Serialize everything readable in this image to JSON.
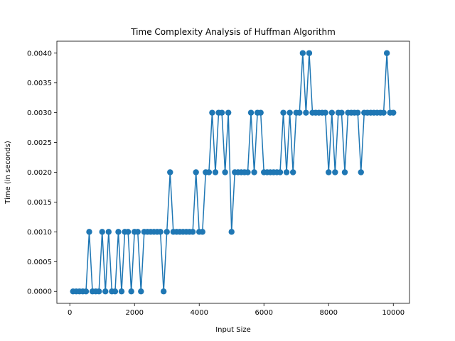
{
  "chart_data": {
    "type": "line",
    "title": "Time Complexity Analysis of Huffman Algorithm",
    "xlabel": "Input Size",
    "ylabel": "Time (in seconds)",
    "xlim": [
      -400,
      10500
    ],
    "ylim": [
      -0.0002,
      0.0042
    ],
    "xticks": [
      0,
      2000,
      4000,
      6000,
      8000,
      10000
    ],
    "xtick_labels": [
      "0",
      "2000",
      "4000",
      "6000",
      "8000",
      "10000"
    ],
    "yticks": [
      0,
      0.0005,
      0.001,
      0.0015,
      0.002,
      0.0025,
      0.003,
      0.0035,
      0.004
    ],
    "ytick_labels": [
      "0.0000",
      "0.0005",
      "0.0010",
      "0.0015",
      "0.0020",
      "0.0025",
      "0.0030",
      "0.0035",
      "0.0040"
    ],
    "grid": false,
    "marker": "circle",
    "color": "#1f77b4",
    "x": [
      100,
      200,
      300,
      400,
      500,
      600,
      700,
      800,
      900,
      1000,
      1100,
      1200,
      1300,
      1400,
      1500,
      1600,
      1700,
      1800,
      1900,
      2000,
      2100,
      2200,
      2300,
      2400,
      2500,
      2600,
      2700,
      2800,
      2900,
      3000,
      3100,
      3200,
      3300,
      3400,
      3500,
      3600,
      3700,
      3800,
      3900,
      4000,
      4100,
      4200,
      4300,
      4400,
      4500,
      4600,
      4700,
      4800,
      4900,
      5000,
      5100,
      5200,
      5300,
      5400,
      5500,
      5600,
      5700,
      5800,
      5900,
      6000,
      6100,
      6200,
      6300,
      6400,
      6500,
      6600,
      6700,
      6800,
      6900,
      7000,
      7100,
      7200,
      7300,
      7400,
      7500,
      7600,
      7700,
      7800,
      7900,
      8000,
      8100,
      8200,
      8300,
      8400,
      8500,
      8600,
      8700,
      8800,
      8900,
      9000,
      9100,
      9200,
      9300,
      9400,
      9500,
      9600,
      9700,
      9800,
      9900,
      10000
    ],
    "y": [
      0,
      0,
      0,
      0,
      0,
      0.001,
      0,
      0,
      0,
      0.001,
      0,
      0.001,
      0,
      0,
      0.001,
      0,
      0.001,
      0.001,
      0,
      0.001,
      0.001,
      0,
      0.001,
      0.001,
      0.001,
      0.001,
      0.001,
      0.001,
      0,
      0.001,
      0.002,
      0.001,
      0.001,
      0.001,
      0.001,
      0.001,
      0.001,
      0.001,
      0.002,
      0.001,
      0.001,
      0.002,
      0.002,
      0.003,
      0.002,
      0.003,
      0.003,
      0.002,
      0.003,
      0.001,
      0.002,
      0.002,
      0.002,
      0.002,
      0.002,
      0.003,
      0.002,
      0.003,
      0.003,
      0.002,
      0.002,
      0.002,
      0.002,
      0.002,
      0.002,
      0.003,
      0.002,
      0.003,
      0.002,
      0.003,
      0.003,
      0.004,
      0.003,
      0.004,
      0.003,
      0.003,
      0.003,
      0.003,
      0.003,
      0.002,
      0.003,
      0.002,
      0.003,
      0.003,
      0.002,
      0.003,
      0.003,
      0.003,
      0.003,
      0.002,
      0.003,
      0.003,
      0.003,
      0.003,
      0.003,
      0.003,
      0.003,
      0.004,
      0.003,
      0.003
    ]
  }
}
